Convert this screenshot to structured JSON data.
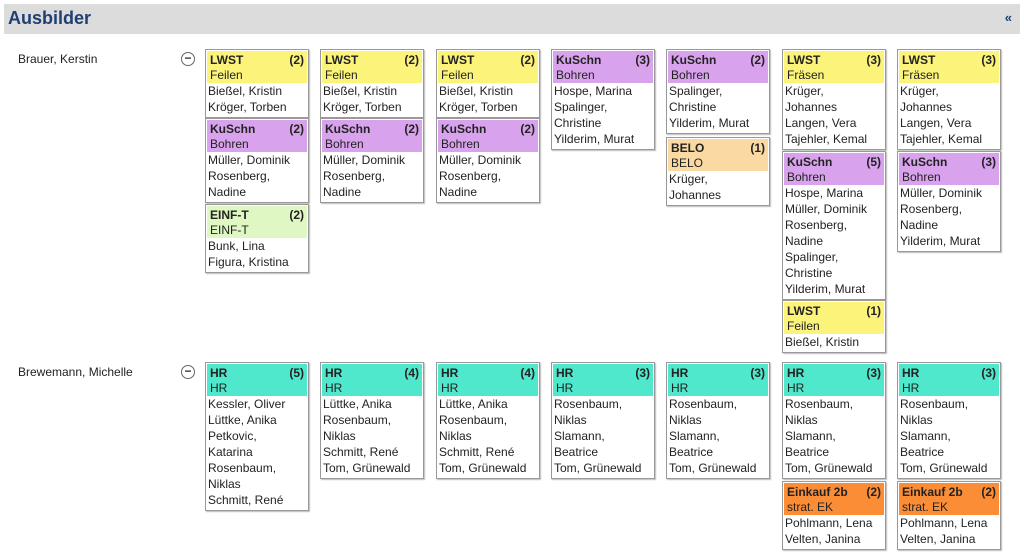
{
  "header": {
    "title": "Ausbilder",
    "collapse_icon": "«"
  },
  "rows": [
    {
      "name": "Brauer, Kerstin",
      "toggle": "−"
    },
    {
      "name": "Brewemann, Michelle",
      "toggle": "−"
    }
  ],
  "cards": [
    {
      "color": "yellow",
      "code": "LWST",
      "count": "(2)",
      "subject": "Feilen",
      "names": [
        "Bießel, Kristin",
        "Kröger, Torben"
      ]
    },
    {
      "color": "yellow",
      "code": "LWST",
      "count": "(2)",
      "subject": "Feilen",
      "names": [
        "Bießel, Kristin",
        "Kröger, Torben"
      ]
    },
    {
      "color": "yellow",
      "code": "LWST",
      "count": "(2)",
      "subject": "Feilen",
      "names": [
        "Bießel, Kristin",
        "Kröger, Torben"
      ]
    },
    {
      "color": "purple",
      "code": "KuSchn",
      "count": "(3)",
      "subject": "Bohren",
      "names": [
        "Hospe, Marina",
        "Spalinger,",
        "Christine",
        "Yilderim, Murat"
      ]
    },
    {
      "color": "purple",
      "code": "KuSchn",
      "count": "(2)",
      "subject": "Bohren",
      "names": [
        "Spalinger,",
        "Christine",
        "Yilderim, Murat"
      ]
    },
    {
      "color": "yellow",
      "code": "LWST",
      "count": "(3)",
      "subject": "Fräsen",
      "names": [
        "Krüger,",
        "Johannes",
        "Langen, Vera",
        "Tajehler, Kemal"
      ]
    },
    {
      "color": "yellow",
      "code": "LWST",
      "count": "(3)",
      "subject": "Fräsen",
      "names": [
        "Krüger,",
        "Johannes",
        "Langen, Vera",
        "Tajehler, Kemal"
      ]
    },
    {
      "color": "purple",
      "code": "KuSchn",
      "count": "(2)",
      "subject": "Bohren",
      "names": [
        "Müller, Dominik",
        "Rosenberg,",
        "Nadine"
      ]
    },
    {
      "color": "purple",
      "code": "KuSchn",
      "count": "(2)",
      "subject": "Bohren",
      "names": [
        "Müller, Dominik",
        "Rosenberg,",
        "Nadine"
      ]
    },
    {
      "color": "purple",
      "code": "KuSchn",
      "count": "(2)",
      "subject": "Bohren",
      "names": [
        "Müller, Dominik",
        "Rosenberg,",
        "Nadine"
      ]
    },
    {
      "color": "tan",
      "code": "BELO",
      "count": "(1)",
      "subject": "BELO",
      "names": [
        "Krüger,",
        "Johannes"
      ]
    },
    {
      "color": "purple",
      "code": "KuSchn",
      "count": "(5)",
      "subject": "Bohren",
      "names": [
        "Hospe, Marina",
        "Müller, Dominik",
        "Rosenberg,",
        "Nadine",
        "Spalinger,",
        "Christine",
        "Yilderim, Murat"
      ]
    },
    {
      "color": "purple",
      "code": "KuSchn",
      "count": "(3)",
      "subject": "Bohren",
      "names": [
        "Müller, Dominik",
        "Rosenberg,",
        "Nadine",
        "Yilderim, Murat"
      ]
    },
    {
      "color": "green",
      "code": "EINF-T",
      "count": "(2)",
      "subject": "EINF-T",
      "names": [
        "Bunk, Lina",
        "Figura, Kristina"
      ]
    },
    {
      "color": "yellow",
      "code": "LWST",
      "count": "(1)",
      "subject": "Feilen",
      "names": [
        "Bießel, Kristin"
      ]
    },
    {
      "color": "teal",
      "code": "HR",
      "count": "(5)",
      "subject": "HR",
      "names": [
        "Kessler, Oliver",
        "Lüttke, Anika",
        "Petkovic,",
        "Katarina",
        "Rosenbaum,",
        "Niklas",
        "Schmitt, René"
      ]
    },
    {
      "color": "teal",
      "code": "HR",
      "count": "(4)",
      "subject": "HR",
      "names": [
        "Lüttke, Anika",
        "Rosenbaum,",
        "Niklas",
        "Schmitt, René",
        "Tom, Grünewald"
      ]
    },
    {
      "color": "teal",
      "code": "HR",
      "count": "(4)",
      "subject": "HR",
      "names": [
        "Lüttke, Anika",
        "Rosenbaum,",
        "Niklas",
        "Schmitt, René",
        "Tom, Grünewald"
      ]
    },
    {
      "color": "teal",
      "code": "HR",
      "count": "(3)",
      "subject": "HR",
      "names": [
        "Rosenbaum,",
        "Niklas",
        "Slamann,",
        "Beatrice",
        "Tom, Grünewald"
      ]
    },
    {
      "color": "teal",
      "code": "HR",
      "count": "(3)",
      "subject": "HR",
      "names": [
        "Rosenbaum,",
        "Niklas",
        "Slamann,",
        "Beatrice",
        "Tom, Grünewald"
      ]
    },
    {
      "color": "teal",
      "code": "HR",
      "count": "(3)",
      "subject": "HR",
      "names": [
        "Rosenbaum,",
        "Niklas",
        "Slamann,",
        "Beatrice",
        "Tom, Grünewald"
      ]
    },
    {
      "color": "teal",
      "code": "HR",
      "count": "(3)",
      "subject": "HR",
      "names": [
        "Rosenbaum,",
        "Niklas",
        "Slamann,",
        "Beatrice",
        "Tom, Grünewald"
      ]
    },
    {
      "color": "orange",
      "code": "Einkauf 2b",
      "count": "(2)",
      "subject": "strat. EK",
      "names": [
        "Pohlmann, Lena",
        "Velten, Janina"
      ]
    },
    {
      "color": "orange",
      "code": "Einkauf 2b",
      "count": "(2)",
      "subject": "strat. EK",
      "names": [
        "Pohlmann, Lena",
        "Velten, Janina"
      ]
    }
  ]
}
